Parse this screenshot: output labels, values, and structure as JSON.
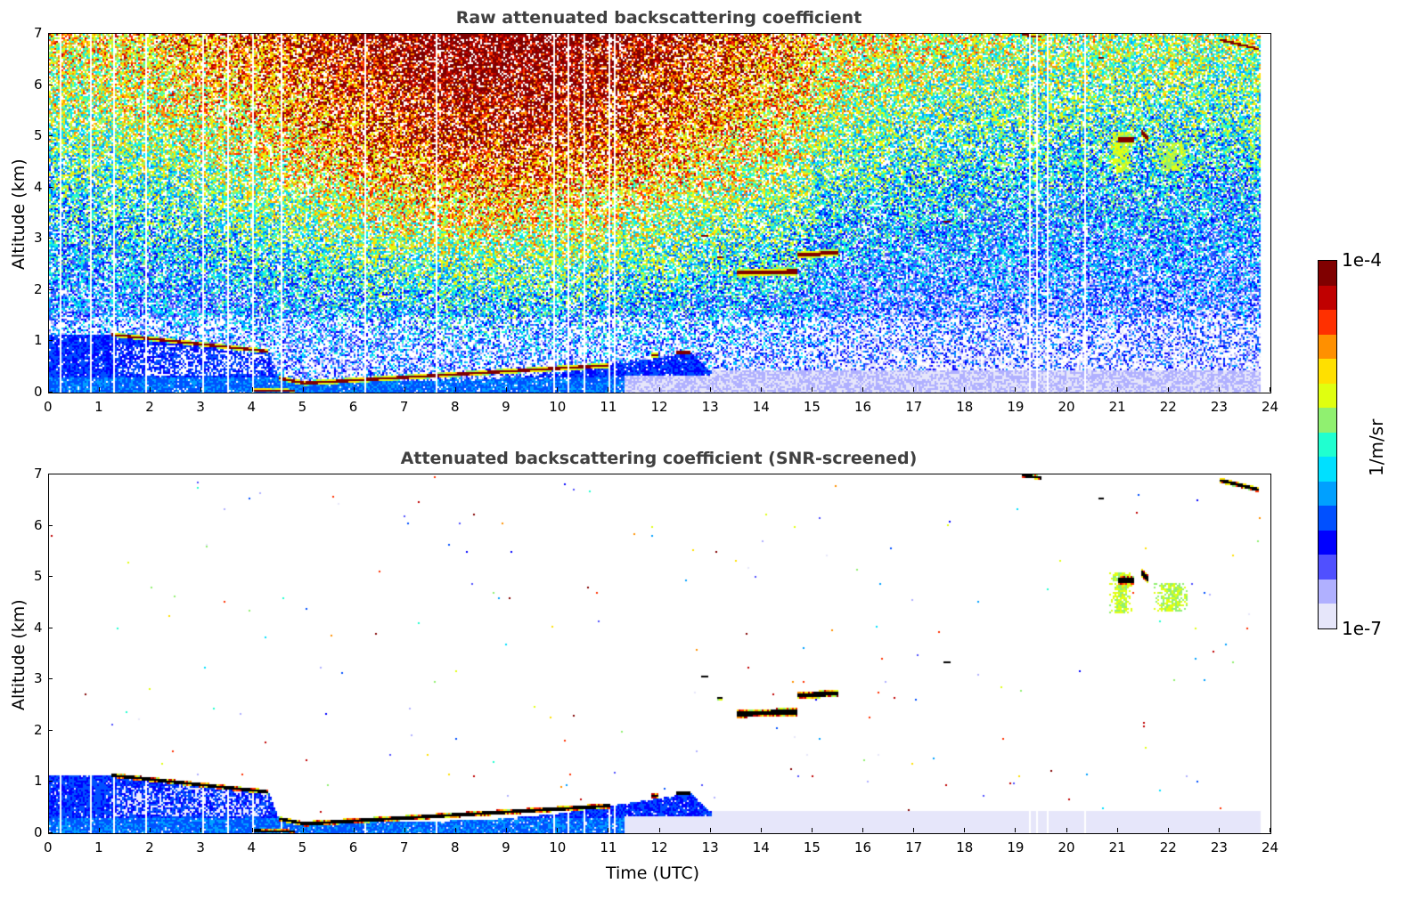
{
  "chart_data": [
    {
      "type": "heatmap",
      "title": "Raw attenuated backscattering coefficient",
      "xlabel": "",
      "ylabel": "Altitude (km)",
      "xlim": [
        0,
        24
      ],
      "ylim": [
        0,
        7
      ],
      "screened": false
    },
    {
      "type": "heatmap",
      "title": "Attenuated backscattering coefficient (SNR-screened)",
      "xlabel": "Time (UTC)",
      "ylabel": "Altitude (km)",
      "xlim": [
        0,
        24
      ],
      "ylim": [
        0,
        7
      ],
      "screened": true
    }
  ],
  "axes": {
    "xticks": [
      0,
      1,
      2,
      3,
      4,
      5,
      6,
      7,
      8,
      9,
      10,
      11,
      12,
      13,
      14,
      15,
      16,
      17,
      18,
      19,
      20,
      21,
      22,
      23,
      24
    ],
    "yticks": [
      0,
      1,
      2,
      3,
      4,
      5,
      6,
      7
    ]
  },
  "colorbar": {
    "label": "1/m/sr",
    "max_label": "1e-4",
    "min_label": "1e-7",
    "log_range": [
      -7,
      -4
    ],
    "colors": [
      "#e6e6fa",
      "#b0b0ff",
      "#5050ff",
      "#0000ff",
      "#0050ff",
      "#00a0ff",
      "#00e0ff",
      "#20ffd0",
      "#90f070",
      "#e0ff10",
      "#ffe000",
      "#ff9000",
      "#ff3000",
      "#c00000",
      "#800000"
    ]
  },
  "layers": {
    "boundary_layer_top": [
      [
        0,
        1.15
      ],
      [
        1.2,
        1.15
      ],
      [
        2.5,
        1.05
      ],
      [
        3.3,
        0.95
      ],
      [
        4.3,
        0.82
      ],
      [
        4.5,
        0.3
      ],
      [
        5.0,
        0.2
      ],
      [
        6.5,
        0.24
      ],
      [
        8.5,
        0.27
      ],
      [
        10,
        0.4
      ],
      [
        11,
        0.55
      ],
      [
        12,
        0.7
      ],
      [
        12.6,
        0.8
      ],
      [
        13,
        0.4
      ],
      [
        24,
        0.4
      ]
    ],
    "clouds": [
      {
        "t": [
          1.2,
          4.3
        ],
        "alt": [
          1.15,
          0.82
        ],
        "thick": 0.09
      },
      {
        "t": [
          4.5,
          5.0
        ],
        "alt": [
          0.3,
          0.2
        ],
        "thick": 0.09
      },
      {
        "t": [
          5.0,
          11.0
        ],
        "alt": [
          0.2,
          0.55
        ],
        "thick": 0.1
      },
      {
        "t": [
          4.0,
          4.8
        ],
        "alt": [
          0.07,
          0.05
        ],
        "thick": 0.07
      },
      {
        "t": [
          13.5,
          14.7
        ],
        "alt": [
          2.35,
          2.38
        ],
        "thick": 0.16
      },
      {
        "t": [
          14.7,
          15.5
        ],
        "alt": [
          2.7,
          2.75
        ],
        "thick": 0.14
      },
      {
        "t": [
          13.1,
          13.2
        ],
        "alt": [
          2.65,
          2.65
        ],
        "thick": 0.08
      },
      {
        "t": [
          12.8,
          12.95
        ],
        "alt": [
          3.07,
          3.07
        ],
        "thick": 0.06
      },
      {
        "t": [
          17.55,
          17.7
        ],
        "alt": [
          3.35,
          3.35
        ],
        "thick": 0.06
      },
      {
        "t": [
          21.0,
          21.3
        ],
        "alt": [
          4.95,
          4.95
        ],
        "thick": 0.15
      },
      {
        "t": [
          21.45,
          21.6
        ],
        "alt": [
          5.1,
          4.95
        ],
        "thick": 0.18
      },
      {
        "t": [
          20.6,
          20.7
        ],
        "alt": [
          6.55,
          6.55
        ],
        "thick": 0.06
      },
      {
        "t": [
          19.1,
          19.5
        ],
        "alt": [
          7.0,
          6.95
        ],
        "thick": 0.08
      },
      {
        "t": [
          23.0,
          23.75
        ],
        "alt": [
          6.9,
          6.72
        ],
        "thick": 0.1
      },
      {
        "t": [
          11.8,
          11.95
        ],
        "alt": [
          0.75,
          0.75
        ],
        "thick": 0.1
      },
      {
        "t": [
          12.3,
          12.6
        ],
        "alt": [
          0.8,
          0.8
        ],
        "thick": 0.1
      }
    ],
    "cirrus": [
      {
        "t": [
          20.8,
          21.3
        ],
        "alt": [
          4.3,
          5.1
        ],
        "level": 0.62
      },
      {
        "t": [
          21.7,
          22.4
        ],
        "alt": [
          4.35,
          4.9
        ],
        "level": 0.6
      }
    ],
    "data_gaps": [
      0.2,
      0.3,
      0.8,
      1.25,
      1.35,
      1.9,
      3.0,
      3.5,
      4.0,
      4.55,
      6.2,
      6.7,
      6.85,
      7.2,
      7.6,
      8.0,
      8.6,
      9.3,
      9.9,
      10.2,
      10.5,
      10.8,
      11.0,
      11.1,
      19.1,
      19.25,
      19.4,
      19.6,
      20.35,
      20.5,
      21.2
    ]
  }
}
